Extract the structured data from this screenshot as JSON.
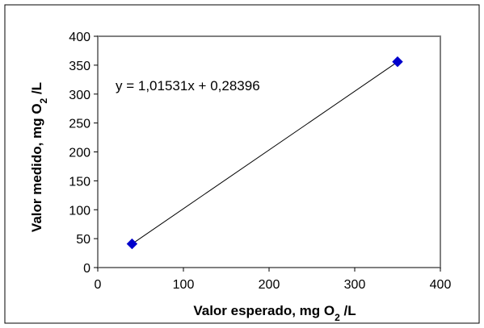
{
  "chart_data": {
    "type": "scatter",
    "x": [
      40,
      350
    ],
    "y": [
      41,
      356
    ],
    "xlim": [
      0,
      400
    ],
    "ylim": [
      0,
      400
    ],
    "xticks": [
      "0",
      "100",
      "200",
      "300",
      "400"
    ],
    "yticks": [
      "0",
      "50",
      "100",
      "150",
      "200",
      "250",
      "300",
      "350",
      "400"
    ],
    "xlabel": {
      "main": "Valor esperado, mg O",
      "sub": "2",
      "tail": " /L"
    },
    "ylabel": {
      "main": "Valor medido, mg O",
      "sub": "2",
      "tail": " /L"
    },
    "trendline": {
      "slope": 1.01531,
      "intercept": 0.28396,
      "equation": "y = 1,01531x + 0,28396"
    },
    "grid": false,
    "legend": "none",
    "marker": "diamond",
    "marker_color": "#0000cc",
    "line_color": "#000000"
  }
}
